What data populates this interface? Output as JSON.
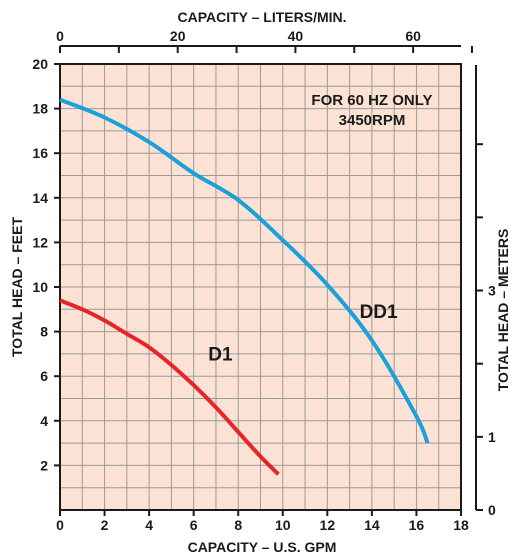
{
  "chart_data": {
    "type": "line",
    "note": [
      "FOR 60 HZ ONLY",
      "3450RPM"
    ],
    "x_bottom": {
      "label": "CAPACITY – U.S. GPM",
      "range": [
        0,
        18
      ],
      "ticks": [
        0,
        2,
        4,
        6,
        8,
        10,
        12,
        14,
        16,
        18
      ]
    },
    "x_top": {
      "label": "CAPACITY – LITERS/MIN.",
      "tick_labels": [
        {
          "value": 0,
          "text": "0"
        },
        {
          "value": 20,
          "text": "20"
        },
        {
          "value": 40,
          "text": "40"
        },
        {
          "value": 60,
          "text": "60"
        }
      ],
      "minor_ticks": [
        10,
        30,
        50,
        70
      ]
    },
    "y_left": {
      "label": "TOTAL HEAD – FEET",
      "range": [
        0,
        20
      ],
      "ticks": [
        2,
        4,
        6,
        8,
        10,
        12,
        14,
        16,
        18,
        20
      ]
    },
    "y_right": {
      "label": "TOTAL HEAD – METERS",
      "tick_labels": [
        {
          "value": 0,
          "text": "0"
        },
        {
          "value": 1,
          "text": "1"
        },
        {
          "value": 3,
          "text": "3"
        }
      ],
      "minor_ticks": [
        2,
        4,
        5
      ]
    },
    "grid": true,
    "series": [
      {
        "name": "DD1",
        "color": "#1ba1d9",
        "label_at": {
          "x": 14.3,
          "y": 8.6
        },
        "x": [
          0,
          2,
          4,
          6,
          8,
          10,
          12,
          14,
          16,
          16.5
        ],
        "y": [
          18.4,
          17.6,
          16.5,
          15.1,
          13.9,
          12.1,
          10.1,
          7.6,
          4.2,
          3.0
        ]
      },
      {
        "name": "D1",
        "color": "#e52528",
        "label_at": {
          "x": 7.2,
          "y": 6.7
        },
        "x": [
          0,
          1,
          2,
          3,
          4,
          5,
          6,
          7,
          8,
          9,
          9.8
        ],
        "y": [
          9.4,
          9.0,
          8.5,
          7.9,
          7.3,
          6.5,
          5.6,
          4.6,
          3.5,
          2.4,
          1.6
        ]
      }
    ],
    "colors": {
      "plot_background": "#fbe2d4",
      "grid": "#9a9a9a",
      "axis": "#1a1a1a"
    }
  }
}
